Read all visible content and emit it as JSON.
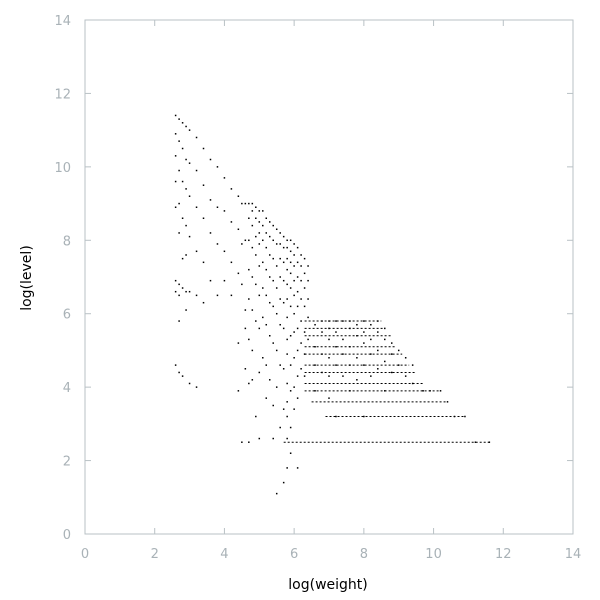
{
  "chart_data": {
    "type": "scatter",
    "title": "",
    "xlabel": "log(weight)",
    "ylabel": "log(level)",
    "xlim": [
      0,
      14
    ],
    "ylim": [
      0,
      14
    ],
    "x_ticks": [
      "0",
      "2",
      "4",
      "6",
      "8",
      "10",
      "12",
      "14"
    ],
    "y_ticks": [
      "0",
      "2",
      "4",
      "6",
      "8",
      "10",
      "12",
      "14"
    ],
    "grid": false,
    "legend": "none",
    "point_color": "#000000",
    "axis_color": "#b9c1c5",
    "tick_label_color": "#a9b2b7",
    "series": [
      {
        "points": [
          [
            2.6,
            11.4
          ],
          [
            2.6,
            10.9
          ],
          [
            2.6,
            10.3
          ],
          [
            2.6,
            9.6
          ],
          [
            2.6,
            8.9
          ],
          [
            2.6,
            6.9
          ],
          [
            2.6,
            6.6
          ],
          [
            2.6,
            4.6
          ],
          [
            2.7,
            11.3
          ],
          [
            2.7,
            10.7
          ],
          [
            2.7,
            9.9
          ],
          [
            2.7,
            9.0
          ],
          [
            2.7,
            8.2
          ],
          [
            2.7,
            6.8
          ],
          [
            2.7,
            6.5
          ],
          [
            2.7,
            5.8
          ],
          [
            2.7,
            4.4
          ],
          [
            2.8,
            11.2
          ],
          [
            2.8,
            10.5
          ],
          [
            2.8,
            9.6
          ],
          [
            2.8,
            8.6
          ],
          [
            2.8,
            7.5
          ],
          [
            2.8,
            6.7
          ],
          [
            2.8,
            4.3
          ],
          [
            2.9,
            11.1
          ],
          [
            2.9,
            10.2
          ],
          [
            2.9,
            9.4
          ],
          [
            2.9,
            8.4
          ],
          [
            2.9,
            7.6
          ],
          [
            2.9,
            6.6
          ],
          [
            2.9,
            6.1
          ],
          [
            3.0,
            11.0
          ],
          [
            3.0,
            10.1
          ],
          [
            3.0,
            9.2
          ],
          [
            3.0,
            8.1
          ],
          [
            3.0,
            6.6
          ],
          [
            3.0,
            4.1
          ],
          [
            3.2,
            10.8
          ],
          [
            3.2,
            9.9
          ],
          [
            3.2,
            8.9
          ],
          [
            3.2,
            7.7
          ],
          [
            3.2,
            6.5
          ],
          [
            3.2,
            4.0
          ],
          [
            3.4,
            10.5
          ],
          [
            3.4,
            9.5
          ],
          [
            3.4,
            8.6
          ],
          [
            3.4,
            7.4
          ],
          [
            3.4,
            6.3
          ],
          [
            3.6,
            10.2
          ],
          [
            3.6,
            9.1
          ],
          [
            3.6,
            8.2
          ],
          [
            3.6,
            6.9
          ],
          [
            3.8,
            10.0
          ],
          [
            3.8,
            8.9
          ],
          [
            3.8,
            7.9
          ],
          [
            3.8,
            6.5
          ],
          [
            4.0,
            9.7
          ],
          [
            4.0,
            8.8
          ],
          [
            4.0,
            7.7
          ],
          [
            4.0,
            6.9
          ],
          [
            4.2,
            9.4
          ],
          [
            4.2,
            8.5
          ],
          [
            4.2,
            7.4
          ],
          [
            4.2,
            6.5
          ],
          [
            4.4,
            9.2
          ],
          [
            4.4,
            8.3
          ],
          [
            4.4,
            7.1
          ],
          [
            4.4,
            5.2
          ],
          [
            4.4,
            3.9
          ],
          [
            4.5,
            9.0
          ],
          [
            4.5,
            7.9
          ],
          [
            4.5,
            6.8
          ],
          [
            4.5,
            2.5
          ],
          [
            4.6,
            9.0
          ],
          [
            4.6,
            8.0
          ],
          [
            4.6,
            6.1
          ],
          [
            4.6,
            5.6
          ],
          [
            4.6,
            4.5
          ],
          [
            4.7,
            9.0
          ],
          [
            4.7,
            8.6
          ],
          [
            4.7,
            8.0
          ],
          [
            4.7,
            7.2
          ],
          [
            4.7,
            6.4
          ],
          [
            4.7,
            5.3
          ],
          [
            4.7,
            4.1
          ],
          [
            4.7,
            2.5
          ],
          [
            4.8,
            9.0
          ],
          [
            4.8,
            8.8
          ],
          [
            4.8,
            8.4
          ],
          [
            4.8,
            7.8
          ],
          [
            4.8,
            7.0
          ],
          [
            4.8,
            6.1
          ],
          [
            4.8,
            5.0
          ],
          [
            4.8,
            4.2
          ],
          [
            4.9,
            8.9
          ],
          [
            4.9,
            8.6
          ],
          [
            4.9,
            8.1
          ],
          [
            4.9,
            7.6
          ],
          [
            4.9,
            6.8
          ],
          [
            4.9,
            5.8
          ],
          [
            4.9,
            3.2
          ],
          [
            5.0,
            8.8
          ],
          [
            5.0,
            8.5
          ],
          [
            5.0,
            8.2
          ],
          [
            5.0,
            7.9
          ],
          [
            5.0,
            7.3
          ],
          [
            5.0,
            6.5
          ],
          [
            5.0,
            5.6
          ],
          [
            5.0,
            4.4
          ],
          [
            5.0,
            2.6
          ],
          [
            5.1,
            8.8
          ],
          [
            5.1,
            8.4
          ],
          [
            5.1,
            8.0
          ],
          [
            5.1,
            7.4
          ],
          [
            5.1,
            6.7
          ],
          [
            5.1,
            5.9
          ],
          [
            5.1,
            4.8
          ],
          [
            5.2,
            8.6
          ],
          [
            5.2,
            8.2
          ],
          [
            5.2,
            7.8
          ],
          [
            5.2,
            7.2
          ],
          [
            5.2,
            6.5
          ],
          [
            5.2,
            5.7
          ],
          [
            5.2,
            4.6
          ],
          [
            5.2,
            3.7
          ],
          [
            5.3,
            8.5
          ],
          [
            5.3,
            8.1
          ],
          [
            5.3,
            7.6
          ],
          [
            5.3,
            7.0
          ],
          [
            5.3,
            6.3
          ],
          [
            5.3,
            5.4
          ],
          [
            5.3,
            4.2
          ],
          [
            5.4,
            8.4
          ],
          [
            5.4,
            8.0
          ],
          [
            5.4,
            7.5
          ],
          [
            5.4,
            6.9
          ],
          [
            5.4,
            6.2
          ],
          [
            5.4,
            5.2
          ],
          [
            5.4,
            3.5
          ],
          [
            5.4,
            2.6
          ],
          [
            5.5,
            8.3
          ],
          [
            5.5,
            7.9
          ],
          [
            5.5,
            7.3
          ],
          [
            5.5,
            6.7
          ],
          [
            5.5,
            6.0
          ],
          [
            5.5,
            5.0
          ],
          [
            5.5,
            4.0
          ],
          [
            5.5,
            1.1
          ],
          [
            5.6,
            8.2
          ],
          [
            5.6,
            7.9
          ],
          [
            5.6,
            7.5
          ],
          [
            5.6,
            7.0
          ],
          [
            5.6,
            6.4
          ],
          [
            5.6,
            5.7
          ],
          [
            5.6,
            4.6
          ],
          [
            5.6,
            2.9
          ],
          [
            5.7,
            8.1
          ],
          [
            5.7,
            7.8
          ],
          [
            5.7,
            7.4
          ],
          [
            5.7,
            6.9
          ],
          [
            5.7,
            6.3
          ],
          [
            5.7,
            5.6
          ],
          [
            5.7,
            4.5
          ],
          [
            5.7,
            3.4
          ],
          [
            5.7,
            1.4
          ],
          [
            5.8,
            8.0
          ],
          [
            5.8,
            7.8
          ],
          [
            5.8,
            7.5
          ],
          [
            5.8,
            7.2
          ],
          [
            5.8,
            6.8
          ],
          [
            5.8,
            6.4
          ],
          [
            5.8,
            5.9
          ],
          [
            5.8,
            5.3
          ],
          [
            5.8,
            4.9
          ],
          [
            5.8,
            4.1
          ],
          [
            5.8,
            3.6
          ],
          [
            5.8,
            3.2
          ],
          [
            5.8,
            2.6
          ],
          [
            5.8,
            1.8
          ],
          [
            5.9,
            8.0
          ],
          [
            5.9,
            7.7
          ],
          [
            5.9,
            7.4
          ],
          [
            5.9,
            7.1
          ],
          [
            5.9,
            6.7
          ],
          [
            5.9,
            6.2
          ],
          [
            5.9,
            5.4
          ],
          [
            5.9,
            4.6
          ],
          [
            5.9,
            3.9
          ],
          [
            5.9,
            2.9
          ],
          [
            5.9,
            2.2
          ],
          [
            6.0,
            7.9
          ],
          [
            6.0,
            7.6
          ],
          [
            6.0,
            7.3
          ],
          [
            6.0,
            6.9
          ],
          [
            6.0,
            6.5
          ],
          [
            6.0,
            6.0
          ],
          [
            6.0,
            5.5
          ],
          [
            6.0,
            4.8
          ],
          [
            6.0,
            4.0
          ],
          [
            6.0,
            3.4
          ],
          [
            6.1,
            7.8
          ],
          [
            6.1,
            7.4
          ],
          [
            6.1,
            7.0
          ],
          [
            6.1,
            6.6
          ],
          [
            6.1,
            6.2
          ],
          [
            6.1,
            5.6
          ],
          [
            6.1,
            5.0
          ],
          [
            6.1,
            4.3
          ],
          [
            6.1,
            3.7
          ],
          [
            6.1,
            1.8
          ],
          [
            6.2,
            7.6
          ],
          [
            6.2,
            7.3
          ],
          [
            6.2,
            6.9
          ],
          [
            6.2,
            6.4
          ],
          [
            6.2,
            5.8
          ],
          [
            6.2,
            5.2
          ],
          [
            6.2,
            4.5
          ],
          [
            6.3,
            7.5
          ],
          [
            6.3,
            7.1
          ],
          [
            6.3,
            6.7
          ],
          [
            6.3,
            6.2
          ],
          [
            6.3,
            5.5
          ],
          [
            6.3,
            4.9
          ],
          [
            6.3,
            4.3
          ],
          [
            6.4,
            7.3
          ],
          [
            6.4,
            6.9
          ],
          [
            6.4,
            6.4
          ],
          [
            6.4,
            5.9
          ],
          [
            6.4,
            5.3
          ],
          [
            6.6,
            5.7
          ],
          [
            6.6,
            5.1
          ],
          [
            6.6,
            4.6
          ],
          [
            6.6,
            3.9
          ],
          [
            6.8,
            5.8
          ],
          [
            6.8,
            5.5
          ],
          [
            6.8,
            4.9
          ],
          [
            6.8,
            4.4
          ],
          [
            7.0,
            5.8
          ],
          [
            7.0,
            5.6
          ],
          [
            7.0,
            5.3
          ],
          [
            7.0,
            4.8
          ],
          [
            7.0,
            4.3
          ],
          [
            7.0,
            3.7
          ],
          [
            7.2,
            5.8
          ],
          [
            7.2,
            5.5
          ],
          [
            7.2,
            5.1
          ],
          [
            7.2,
            4.6
          ],
          [
            7.2,
            3.2
          ],
          [
            7.4,
            5.8
          ],
          [
            7.4,
            5.3
          ],
          [
            7.4,
            4.9
          ],
          [
            7.4,
            4.3
          ],
          [
            7.6,
            5.8
          ],
          [
            7.6,
            5.6
          ],
          [
            7.6,
            5.1
          ],
          [
            7.6,
            4.6
          ],
          [
            7.6,
            3.9
          ],
          [
            7.8,
            5.7
          ],
          [
            7.8,
            5.4
          ],
          [
            7.8,
            4.8
          ],
          [
            7.8,
            4.2
          ],
          [
            8.0,
            5.8
          ],
          [
            8.0,
            5.5
          ],
          [
            8.0,
            5.2
          ],
          [
            8.0,
            4.6
          ],
          [
            8.0,
            3.2
          ],
          [
            8.2,
            5.7
          ],
          [
            8.2,
            5.3
          ],
          [
            8.2,
            4.9
          ],
          [
            8.2,
            4.3
          ],
          [
            8.4,
            5.8
          ],
          [
            8.4,
            5.5
          ],
          [
            8.4,
            5.0
          ],
          [
            8.4,
            4.5
          ],
          [
            8.6,
            5.6
          ],
          [
            8.6,
            5.3
          ],
          [
            8.6,
            4.7
          ],
          [
            8.6,
            3.9
          ],
          [
            8.8,
            5.2
          ],
          [
            8.8,
            4.9
          ],
          [
            8.8,
            4.4
          ],
          [
            9.0,
            5.0
          ],
          [
            9.0,
            4.6
          ],
          [
            9.2,
            4.8
          ],
          [
            9.2,
            4.3
          ],
          [
            9.4,
            4.6
          ],
          [
            9.4,
            4.1
          ],
          [
            9.7,
            3.9
          ],
          [
            9.9,
            3.9
          ],
          [
            10.2,
            3.9
          ],
          [
            10.4,
            3.6
          ],
          [
            10.6,
            3.2
          ],
          [
            10.9,
            3.2
          ],
          [
            11.2,
            2.5
          ],
          [
            11.6,
            2.5
          ]
        ]
      }
    ],
    "horizontal_runs": [
      {
        "y": 5.8,
        "x_start": 6.3,
        "x_end": 8.5
      },
      {
        "y": 5.6,
        "x_start": 6.3,
        "x_end": 8.6
      },
      {
        "y": 5.4,
        "x_start": 6.3,
        "x_end": 8.8
      },
      {
        "y": 5.1,
        "x_start": 6.3,
        "x_end": 8.9
      },
      {
        "y": 4.9,
        "x_start": 6.3,
        "x_end": 9.1
      },
      {
        "y": 4.6,
        "x_start": 6.3,
        "x_end": 9.3
      },
      {
        "y": 4.4,
        "x_start": 6.3,
        "x_end": 9.5
      },
      {
        "y": 4.1,
        "x_start": 6.3,
        "x_end": 9.7
      },
      {
        "y": 3.9,
        "x_start": 6.3,
        "x_end": 10.2
      },
      {
        "y": 3.6,
        "x_start": 6.5,
        "x_end": 10.4
      },
      {
        "y": 3.2,
        "x_start": 6.9,
        "x_end": 10.9
      },
      {
        "y": 2.5,
        "x_start": 5.7,
        "x_end": 11.6
      }
    ]
  }
}
